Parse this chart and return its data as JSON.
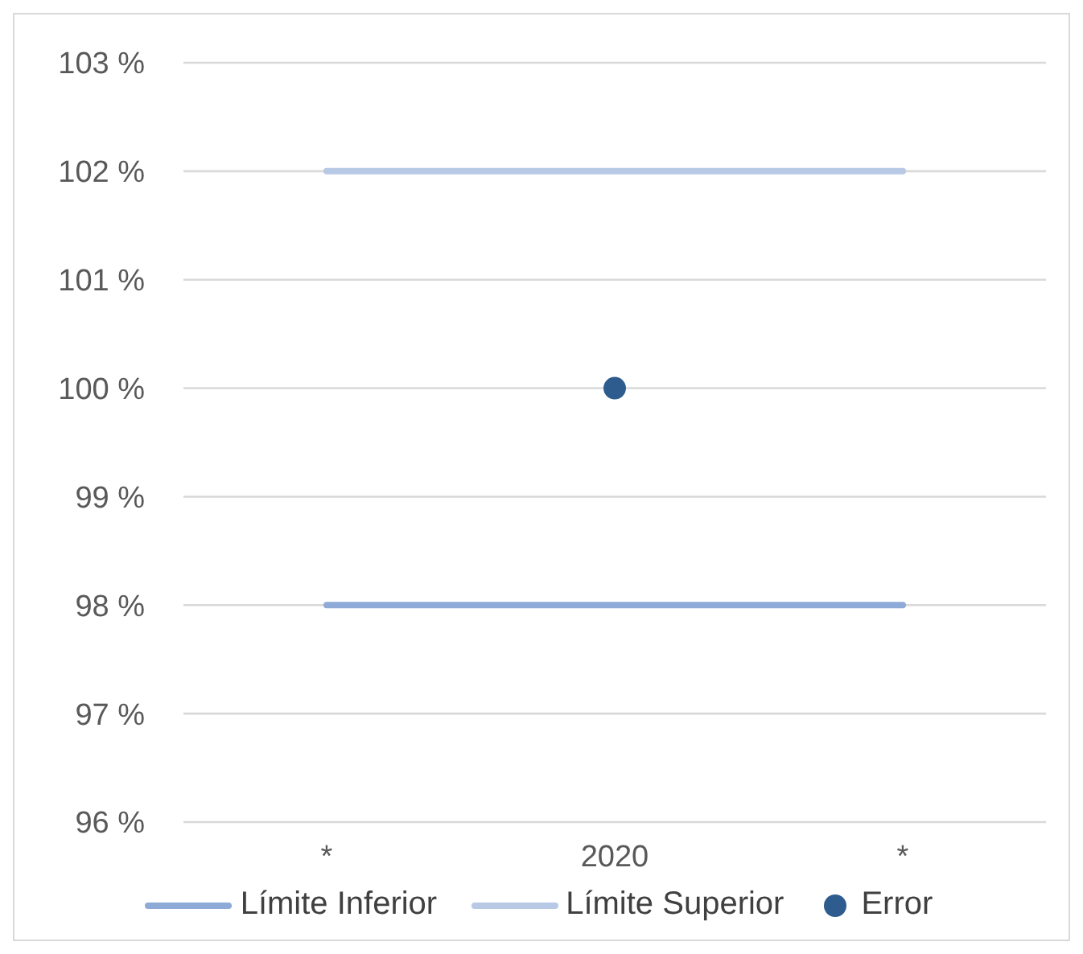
{
  "chart_data": {
    "type": "line",
    "categories": [
      "*",
      "2020",
      "*"
    ],
    "series": [
      {
        "name": "Límite Inferior",
        "color": "#8eaad6",
        "values": [
          98,
          98,
          98
        ]
      },
      {
        "name": "Límite Superior",
        "color": "#b8c9e5",
        "values": [
          102,
          102,
          102
        ]
      },
      {
        "name": "Error",
        "type": "scatter",
        "marker": "circle",
        "color": "#2e5c8e",
        "values": [
          null,
          100,
          null
        ]
      }
    ],
    "ylim": [
      96,
      103
    ],
    "yticks": [
      {
        "value": 96,
        "label": "96 %"
      },
      {
        "value": 97,
        "label": "97 %"
      },
      {
        "value": 98,
        "label": "98 %"
      },
      {
        "value": 99,
        "label": "99 %"
      },
      {
        "value": 100,
        "label": "100 %"
      },
      {
        "value": 101,
        "label": "101 %"
      },
      {
        "value": 102,
        "label": "102 %"
      },
      {
        "value": 103,
        "label": "103 %"
      }
    ],
    "grid": "y",
    "legend": "bottom"
  }
}
